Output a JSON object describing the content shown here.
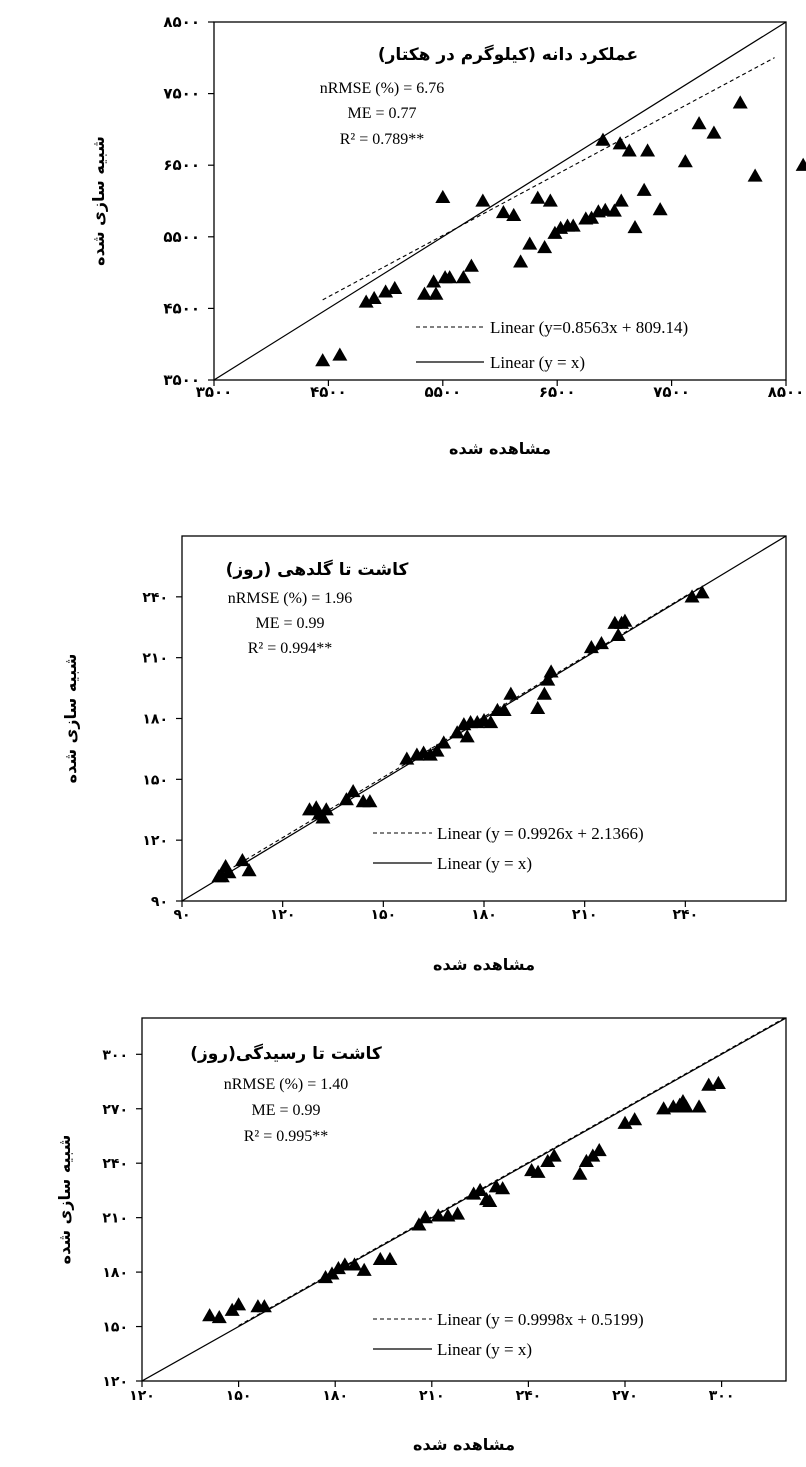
{
  "chart_data": [
    {
      "type": "scatter",
      "title": "عملکرد دانه (کیلوگرم در هکتار)",
      "stats": [
        "nRMSE (%) = 6.76",
        "ME = 0.77",
        "R² = 0.789**"
      ],
      "xlabel": "مشاهده شده",
      "ylabel": "شبیه سازی شده",
      "xlim": [
        3500,
        8500
      ],
      "ylim": [
        3500,
        8500
      ],
      "ticks": [
        3500,
        4500,
        5500,
        6500,
        7500,
        8500
      ],
      "tick_labels": [
        "۳۵۰۰",
        "۴۵۰۰",
        "۵۵۰۰",
        "۶۵۰۰",
        "۷۵۰۰",
        "۸۵۰۰"
      ],
      "fit": {
        "slope": 0.8563,
        "intercept": 809.14,
        "label": "Linear (y=0.8563x + 809.14)",
        "x_range": [
          4450,
          8400
        ]
      },
      "identity_label": "Linear (y = x)",
      "points": [
        [
          4450,
          3770
        ],
        [
          4600,
          3850
        ],
        [
          4830,
          4590
        ],
        [
          4900,
          4640
        ],
        [
          5000,
          4730
        ],
        [
          5080,
          4780
        ],
        [
          5340,
          4700
        ],
        [
          5440,
          4700
        ],
        [
          5420,
          4870
        ],
        [
          5520,
          4930
        ],
        [
          5560,
          4930
        ],
        [
          5680,
          4930
        ],
        [
          5750,
          5090
        ],
        [
          5500,
          6050
        ],
        [
          5850,
          6000
        ],
        [
          6030,
          5840
        ],
        [
          6120,
          5800
        ],
        [
          6180,
          5150
        ],
        [
          6260,
          5400
        ],
        [
          6330,
          6040
        ],
        [
          6390,
          5350
        ],
        [
          6440,
          6000
        ],
        [
          6480,
          5550
        ],
        [
          6530,
          5620
        ],
        [
          6590,
          5650
        ],
        [
          6640,
          5650
        ],
        [
          6750,
          5750
        ],
        [
          6800,
          5760
        ],
        [
          6860,
          5850
        ],
        [
          6900,
          6850
        ],
        [
          6920,
          5870
        ],
        [
          7000,
          5860
        ],
        [
          7050,
          6800
        ],
        [
          7060,
          6000
        ],
        [
          7130,
          6700
        ],
        [
          7180,
          5630
        ],
        [
          7260,
          6150
        ],
        [
          7290,
          6700
        ],
        [
          7400,
          5880
        ],
        [
          7620,
          6550
        ],
        [
          7740,
          7080
        ],
        [
          7870,
          6950
        ],
        [
          8100,
          7370
        ],
        [
          8230,
          6350
        ],
        [
          8650,
          6500
        ]
      ]
    },
    {
      "type": "scatter",
      "title": "کاشت تا گلدهی (روز)",
      "stats": [
        "nRMSE (%) = 1.96",
        "ME = 0.99",
        "R² = 0.994**"
      ],
      "xlabel": "مشاهده شده",
      "ylabel": "شبیه سازی شده",
      "xlim": [
        90,
        270
      ],
      "ylim": [
        90,
        270
      ],
      "ticks": [
        90,
        120,
        150,
        180,
        210,
        240
      ],
      "tick_labels": [
        "۹۰",
        "۱۲۰",
        "۱۵۰",
        "۱۸۰",
        "۲۱۰",
        "۲۴۰"
      ],
      "fit": {
        "slope": 0.9926,
        "intercept": 2.1366,
        "label": "Linear (y = 0.9926x + 2.1366)",
        "x_range": [
          100,
          244
        ]
      },
      "identity_label": "Linear (y = x)",
      "points": [
        [
          101,
          102
        ],
        [
          102,
          102
        ],
        [
          103,
          107
        ],
        [
          104,
          104
        ],
        [
          108,
          110
        ],
        [
          110,
          105
        ],
        [
          128,
          135
        ],
        [
          130,
          136
        ],
        [
          131,
          133
        ],
        [
          132,
          131
        ],
        [
          133,
          135
        ],
        [
          139,
          140
        ],
        [
          141,
          144
        ],
        [
          144,
          139
        ],
        [
          146,
          139
        ],
        [
          157,
          160
        ],
        [
          160,
          162
        ],
        [
          162,
          163
        ],
        [
          164,
          162
        ],
        [
          166,
          164
        ],
        [
          168,
          168
        ],
        [
          172,
          173
        ],
        [
          174,
          177
        ],
        [
          175,
          171
        ],
        [
          176,
          178
        ],
        [
          178,
          178
        ],
        [
          180,
          179
        ],
        [
          182,
          178
        ],
        [
          184,
          184
        ],
        [
          186,
          184
        ],
        [
          188,
          192
        ],
        [
          196,
          185
        ],
        [
          198,
          192
        ],
        [
          199,
          199
        ],
        [
          200,
          203
        ],
        [
          212,
          215
        ],
        [
          215,
          217
        ],
        [
          219,
          227
        ],
        [
          220,
          221
        ],
        [
          221,
          227
        ],
        [
          222,
          228
        ],
        [
          242,
          240
        ],
        [
          245,
          242
        ]
      ]
    },
    {
      "type": "scatter",
      "title": "کاشت تا رسیدگی(روز)",
      "stats": [
        "nRMSE (%) = 1.40",
        "ME = 0.99",
        "R² = 0.995**"
      ],
      "xlabel": "مشاهده شده",
      "ylabel": "شبیه سازی شده",
      "xlim": [
        120,
        320
      ],
      "ylim": [
        120,
        320
      ],
      "ticks": [
        120,
        150,
        180,
        210,
        240,
        270,
        300
      ],
      "tick_labels": [
        "۱۲۰",
        "۱۵۰",
        "۱۸۰",
        "۲۱۰",
        "۲۴۰",
        "۲۷۰",
        "۳۰۰"
      ],
      "fit": {
        "slope": 0.9998,
        "intercept": 0.5199,
        "label": "Linear (y = 0.9998x + 0.5199)",
        "x_range": [
          150,
          320
        ]
      },
      "identity_label": "Linear (y = x)",
      "points": [
        [
          141,
          156
        ],
        [
          144,
          155
        ],
        [
          148,
          159
        ],
        [
          150,
          162
        ],
        [
          156,
          161
        ],
        [
          158,
          161
        ],
        [
          177,
          177
        ],
        [
          179,
          179
        ],
        [
          181,
          182
        ],
        [
          183,
          184
        ],
        [
          186,
          184
        ],
        [
          189,
          181
        ],
        [
          194,
          187
        ],
        [
          197,
          187
        ],
        [
          206,
          206
        ],
        [
          208,
          210
        ],
        [
          212,
          211
        ],
        [
          215,
          211
        ],
        [
          218,
          212
        ],
        [
          223,
          223
        ],
        [
          225,
          225
        ],
        [
          227,
          220
        ],
        [
          228,
          219
        ],
        [
          230,
          227
        ],
        [
          232,
          226
        ],
        [
          241,
          236
        ],
        [
          243,
          235
        ],
        [
          246,
          241
        ],
        [
          248,
          244
        ],
        [
          256,
          234
        ],
        [
          258,
          241
        ],
        [
          260,
          244
        ],
        [
          262,
          247
        ],
        [
          270,
          262
        ],
        [
          273,
          264
        ],
        [
          282,
          270
        ],
        [
          285,
          271
        ],
        [
          287,
          272
        ],
        [
          288,
          274
        ],
        [
          289,
          271
        ],
        [
          293,
          271
        ],
        [
          296,
          283
        ],
        [
          299,
          284
        ]
      ]
    }
  ]
}
